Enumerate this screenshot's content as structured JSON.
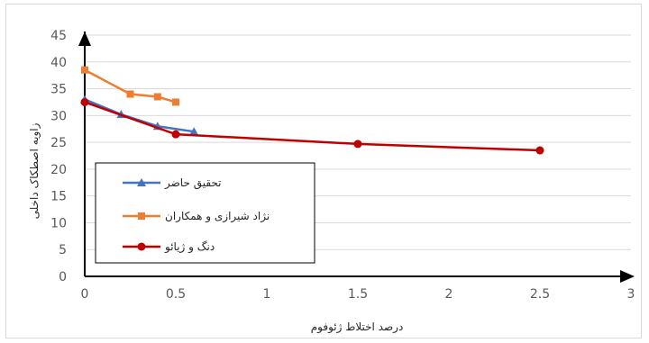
{
  "chart_data": {
    "type": "line",
    "title": "",
    "xlabel": "درصد اختلاط ژئوفوم",
    "ylabel": "زاویه اصطکاک داخلی",
    "xlim": [
      0,
      3
    ],
    "ylim": [
      0,
      45
    ],
    "xticks": [
      "0",
      "0.5",
      "1",
      "1.5",
      "2",
      "2.5",
      "3"
    ],
    "yticks": [
      "0",
      "5",
      "10",
      "15",
      "20",
      "25",
      "30",
      "35",
      "40",
      "45"
    ],
    "grid": "horizontal",
    "legend_position": "bottom-left",
    "series": [
      {
        "name": "تحقیق حاضر",
        "color": "#4472c4",
        "marker": "triangle",
        "points": [
          [
            0,
            33
          ],
          [
            0.2,
            30.2
          ],
          [
            0.4,
            28
          ],
          [
            0.6,
            27
          ]
        ]
      },
      {
        "name": "نژاد شیرازی و همکاران",
        "color": "#ed7d31",
        "marker": "square",
        "points": [
          [
            0,
            38.5
          ],
          [
            0.25,
            34
          ],
          [
            0.4,
            33.5
          ],
          [
            0.5,
            32.5
          ]
        ]
      },
      {
        "name": "دنگ و ژیائو",
        "color": "#c00000",
        "marker": "circle",
        "points": [
          [
            0,
            32.5
          ],
          [
            0.5,
            26.5
          ],
          [
            1.5,
            24.7
          ],
          [
            2.5,
            23.5
          ]
        ]
      }
    ]
  }
}
